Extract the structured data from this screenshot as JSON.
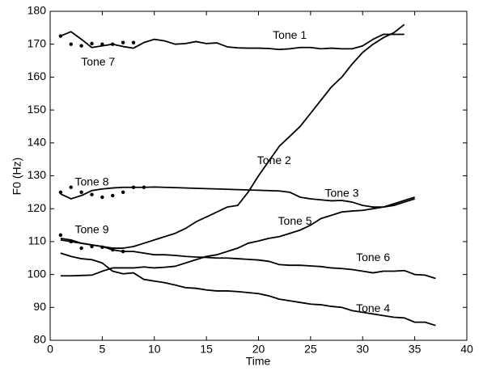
{
  "chart_data": {
    "type": "line",
    "xlabel": "Time",
    "ylabel": "F0 (Hz)",
    "xlim": [
      0,
      40
    ],
    "xticks": [
      0,
      5,
      10,
      15,
      20,
      25,
      30,
      35,
      40
    ],
    "ylim": [
      80,
      180
    ],
    "yticks": [
      80,
      90,
      100,
      110,
      120,
      130,
      140,
      150,
      160,
      170,
      180
    ],
    "series": [
      {
        "name": "Tone 1",
        "color": "#000000",
        "style": "line",
        "x": [
          1,
          2,
          3,
          4,
          5,
          6,
          7,
          8,
          9,
          10,
          11,
          12,
          13,
          14,
          15,
          16,
          17,
          18,
          19,
          20,
          21,
          22,
          23,
          24,
          25,
          26,
          27,
          28,
          29,
          30,
          31,
          32,
          33,
          34
        ],
        "values": [
          172.5,
          173.8,
          171.5,
          169,
          169.5,
          170,
          169.3,
          168.8,
          170.5,
          171.5,
          171,
          170,
          170.2,
          170.8,
          170.2,
          170.4,
          169.2,
          168.9,
          168.8,
          168.8,
          168.7,
          168.4,
          168.6,
          169,
          169,
          168.6,
          168.8,
          168.6,
          168.6,
          169.5,
          171.5,
          173,
          173,
          173
        ]
      },
      {
        "name": "Tone 7",
        "color": "#000000",
        "style": "dots",
        "x": [
          1,
          2,
          3,
          4,
          5,
          6,
          7,
          8
        ],
        "values": [
          172.5,
          170,
          169.5,
          170.2,
          170,
          170,
          170.5,
          170.5
        ]
      },
      {
        "name": "Tone 2",
        "color": "#000000",
        "style": "line",
        "x": [
          1,
          2,
          3,
          4,
          5,
          6,
          7,
          8,
          9,
          10,
          11,
          12,
          13,
          14,
          15,
          16,
          17,
          18,
          19,
          20,
          21,
          22,
          23,
          24,
          25,
          26,
          27,
          28,
          29,
          30,
          31,
          32,
          33,
          34
        ],
        "values": [
          111,
          110.5,
          109.5,
          109,
          108.5,
          108,
          108,
          108.5,
          109.5,
          110.5,
          111.5,
          112.5,
          114,
          116,
          117.5,
          119,
          120.5,
          121,
          125,
          130,
          134.5,
          139,
          142,
          145,
          149,
          153,
          157,
          160,
          164,
          167.5,
          170,
          172,
          173.5,
          176
        ]
      },
      {
        "name": "Tone 8",
        "color": "#000000",
        "style": "dots",
        "x": [
          1,
          2,
          3,
          4,
          5,
          6,
          7,
          8,
          9
        ],
        "values": [
          125,
          126.5,
          125,
          124.3,
          123.5,
          124,
          125,
          126.5,
          126.5
        ]
      },
      {
        "name": "Tone 3",
        "color": "#000000",
        "style": "line",
        "x": [
          1,
          2,
          3,
          4,
          5,
          6,
          7,
          8,
          9,
          10,
          12,
          14,
          16,
          18,
          20,
          22,
          23,
          24,
          25,
          26,
          27,
          28,
          29,
          30,
          31,
          32,
          33,
          34,
          35
        ],
        "values": [
          124.5,
          123,
          124,
          125.5,
          126,
          126.3,
          126.5,
          126.5,
          126.5,
          126.6,
          126.4,
          126.2,
          126,
          125.8,
          125.6,
          125.4,
          125,
          123.5,
          123,
          122.7,
          122.4,
          122.5,
          122,
          121,
          120.5,
          120.5,
          121,
          122,
          123
        ]
      },
      {
        "name": "Tone 5",
        "color": "#000000",
        "style": "line",
        "x": [
          1,
          2,
          3,
          4,
          5,
          6,
          7,
          8,
          9,
          10,
          11,
          12,
          13,
          14,
          15,
          16,
          17,
          18,
          19,
          20,
          21,
          22,
          23,
          24,
          25,
          26,
          27,
          28,
          29,
          30,
          31,
          32,
          33,
          34,
          35
        ],
        "values": [
          99.6,
          99.6,
          99.7,
          99.8,
          101,
          102,
          102,
          102,
          102.3,
          102,
          102.2,
          102.5,
          103.5,
          104.5,
          105.5,
          106,
          107,
          108,
          109.5,
          110.2,
          111,
          111.5,
          112.5,
          113.5,
          115,
          117,
          118,
          119,
          119.3,
          119.5,
          120,
          120.5,
          121.5,
          122.5,
          123.5
        ]
      },
      {
        "name": "Tone 9",
        "color": "#000000",
        "style": "dots",
        "x": [
          1,
          2,
          3,
          4,
          5,
          6,
          7
        ],
        "values": [
          112,
          110,
          108,
          108.5,
          108.3,
          107.5,
          107
        ]
      },
      {
        "name": "Tone 6",
        "color": "#000000",
        "style": "line",
        "x": [
          1,
          2,
          3,
          4,
          5,
          6,
          7,
          8,
          9,
          10,
          11,
          12,
          13,
          14,
          15,
          16,
          17,
          18,
          19,
          20,
          21,
          22,
          23,
          24,
          25,
          26,
          27,
          28,
          29,
          30,
          31,
          32,
          33,
          34,
          35,
          36,
          37
        ],
        "values": [
          110.5,
          110,
          109.5,
          109,
          108.5,
          107.5,
          107,
          107,
          106.5,
          106,
          106,
          105.8,
          105.5,
          105.3,
          105.2,
          105,
          105,
          104.8,
          104.6,
          104.4,
          104,
          103,
          102.8,
          102.8,
          102.6,
          102.4,
          102,
          101.8,
          101.5,
          101,
          100.5,
          101,
          101,
          101.2,
          100,
          99.8,
          98.8
        ]
      },
      {
        "name": "Tone 4",
        "color": "#000000",
        "style": "line",
        "x": [
          1,
          2,
          3,
          4,
          5,
          6,
          7,
          8,
          9,
          10,
          11,
          12,
          13,
          14,
          15,
          16,
          17,
          18,
          19,
          20,
          21,
          22,
          23,
          24,
          25,
          26,
          27,
          28,
          29,
          30,
          31,
          32,
          33,
          34,
          35,
          36,
          37
        ],
        "values": [
          106.5,
          105.5,
          104.8,
          104.5,
          103.5,
          101,
          100.2,
          100.5,
          98.5,
          98,
          97.5,
          96.8,
          96,
          95.8,
          95.3,
          95,
          95,
          94.8,
          94.5,
          94.2,
          93.5,
          92.5,
          92,
          91.5,
          91,
          90.8,
          90.3,
          90,
          89,
          88.5,
          88,
          87.5,
          87,
          86.8,
          85.5,
          85.5,
          84.5
        ]
      }
    ]
  }
}
